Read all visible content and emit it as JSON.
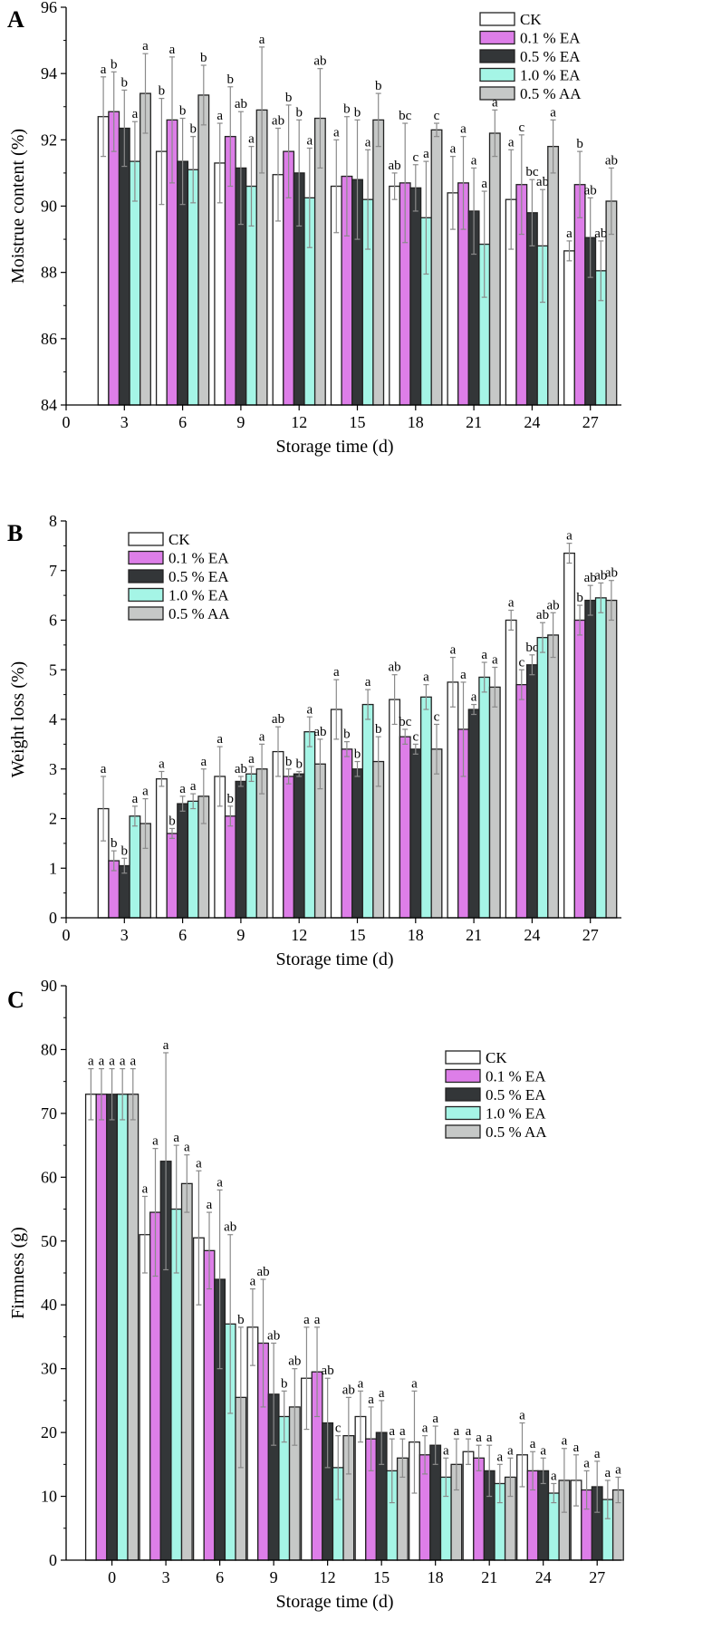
{
  "colors": {
    "CK": "#ffffff",
    "0.1 % EA": "#dd7ee8",
    "0.5 % EA": "#333638",
    "1.0 % EA": "#a5f5e6",
    "0.5 % AA": "#c6c8c7",
    "error_bar": "#8a8a8a"
  },
  "chart_data": [
    {
      "panel_label": "A",
      "type": "bar",
      "xlabel": "Storage time (d)",
      "ylabel": "Moistrue content (%)",
      "ylim": [
        84,
        96
      ],
      "yticks": [
        84,
        86,
        88,
        90,
        92,
        94,
        96
      ],
      "xticks": [
        0,
        3,
        6,
        9,
        12,
        15,
        18,
        21,
        24,
        27
      ],
      "categories": [
        3,
        6,
        9,
        12,
        15,
        18,
        21,
        24,
        27
      ],
      "legend_position": "top-right",
      "grid": false,
      "series": [
        {
          "name": "CK",
          "values": [
            92.7,
            91.65,
            91.3,
            90.95,
            90.6,
            90.6,
            90.4,
            90.2,
            88.65
          ],
          "err": [
            1.2,
            1.6,
            1.2,
            1.4,
            1.4,
            0.4,
            1.1,
            1.5,
            0.3
          ],
          "letters": [
            "a",
            "b",
            "a",
            "ab",
            "a",
            "ab",
            "a",
            "a",
            "a"
          ]
        },
        {
          "name": "0.1 % EA",
          "values": [
            92.85,
            92.6,
            92.1,
            91.65,
            90.9,
            90.7,
            90.7,
            90.65,
            90.65
          ],
          "err": [
            1.2,
            1.9,
            1.5,
            1.4,
            1.8,
            1.8,
            1.4,
            1.5,
            1.0
          ],
          "letters": [
            "b",
            "a",
            "b",
            "b",
            "b",
            "bc",
            "a",
            "c",
            "b"
          ]
        },
        {
          "name": "0.5 % EA",
          "values": [
            92.35,
            91.35,
            91.15,
            91.0,
            90.8,
            90.55,
            89.85,
            89.8,
            89.05
          ],
          "err": [
            1.15,
            1.3,
            1.7,
            1.6,
            1.8,
            0.7,
            1.3,
            1.0,
            1.2
          ],
          "letters": [
            "b",
            "b",
            "ab",
            "b",
            "b",
            "c",
            "a",
            "bc",
            "ab"
          ]
        },
        {
          "name": "1.0 % EA",
          "values": [
            91.35,
            91.1,
            90.6,
            90.25,
            90.2,
            89.65,
            88.85,
            88.8,
            88.05
          ],
          "err": [
            1.2,
            1.0,
            1.2,
            1.5,
            1.5,
            1.7,
            1.6,
            1.7,
            0.9
          ],
          "letters": [
            "a",
            "b",
            "a",
            "a",
            "a",
            "a",
            "a",
            "ab",
            "ab"
          ]
        },
        {
          "name": "0.5 % AA",
          "values": [
            93.4,
            93.35,
            92.9,
            92.65,
            92.6,
            92.3,
            92.2,
            91.8,
            90.15
          ],
          "err": [
            1.2,
            0.9,
            1.9,
            1.5,
            0.8,
            0.2,
            0.7,
            0.8,
            1.0
          ],
          "letters": [
            "a",
            "b",
            "a",
            "ab",
            "b",
            "c",
            "a",
            "a",
            "ab"
          ]
        }
      ]
    },
    {
      "panel_label": "B",
      "type": "bar",
      "xlabel": "Storage time (d)",
      "ylabel": "Weight loss (%)",
      "ylim": [
        0,
        8
      ],
      "yticks": [
        0,
        1,
        2,
        3,
        4,
        5,
        6,
        7,
        8
      ],
      "xticks": [
        0,
        3,
        6,
        9,
        12,
        15,
        18,
        21,
        24,
        27
      ],
      "categories": [
        3,
        6,
        9,
        12,
        15,
        18,
        21,
        24,
        27
      ],
      "legend_position": "top-left",
      "grid": false,
      "series": [
        {
          "name": "CK",
          "values": [
            2.2,
            2.8,
            2.85,
            3.35,
            4.2,
            4.4,
            4.75,
            6.0,
            7.35
          ],
          "err": [
            0.65,
            0.15,
            0.6,
            0.5,
            0.6,
            0.5,
            0.5,
            0.2,
            0.2
          ],
          "letters": [
            "a",
            "a",
            "a",
            "ab",
            "a",
            "ab",
            "a",
            "a",
            "a"
          ]
        },
        {
          "name": "0.1 % EA",
          "values": [
            1.15,
            1.7,
            2.05,
            2.85,
            3.4,
            3.65,
            3.8,
            4.7,
            6.0
          ],
          "err": [
            0.2,
            0.1,
            0.2,
            0.15,
            0.15,
            0.15,
            0.95,
            0.3,
            0.3
          ],
          "letters": [
            "b",
            "b",
            "b",
            "b",
            "b",
            "bc",
            "a",
            "c",
            "b"
          ]
        },
        {
          "name": "0.5 % EA",
          "values": [
            1.05,
            2.3,
            2.75,
            2.9,
            3.0,
            3.4,
            4.2,
            5.1,
            6.4
          ],
          "err": [
            0.15,
            0.15,
            0.1,
            0.05,
            0.15,
            0.1,
            0.1,
            0.2,
            0.3
          ],
          "letters": [
            "b",
            "a",
            "ab",
            "b",
            "b",
            "c",
            "a",
            "bc",
            "ab"
          ]
        },
        {
          "name": "1.0 % EA",
          "values": [
            2.05,
            2.35,
            2.9,
            3.75,
            4.3,
            4.45,
            4.85,
            5.65,
            6.45
          ],
          "err": [
            0.2,
            0.15,
            0.15,
            0.3,
            0.3,
            0.25,
            0.3,
            0.3,
            0.3
          ],
          "letters": [
            "a",
            "a",
            "a",
            "a",
            "a",
            "a",
            "a",
            "ab",
            "ab"
          ]
        },
        {
          "name": "0.5 % AA",
          "values": [
            1.9,
            2.45,
            3.0,
            3.1,
            3.15,
            3.4,
            4.65,
            5.7,
            6.4
          ],
          "err": [
            0.5,
            0.55,
            0.5,
            0.5,
            0.5,
            0.5,
            0.4,
            0.45,
            0.4
          ],
          "letters": [
            "a",
            "a",
            "a",
            "ab",
            "b",
            "c",
            "a",
            "ab",
            "ab"
          ]
        }
      ]
    },
    {
      "panel_label": "C",
      "type": "bar",
      "xlabel": "Storage time (d)",
      "ylabel": "Firmness (g)",
      "ylim": [
        0,
        90
      ],
      "yticks": [
        0,
        10,
        20,
        30,
        40,
        50,
        60,
        70,
        80,
        90
      ],
      "xticks": [
        0,
        3,
        6,
        9,
        12,
        15,
        18,
        21,
        24,
        27
      ],
      "categories": [
        0,
        3,
        6,
        9,
        12,
        15,
        18,
        21,
        24,
        27
      ],
      "legend_position": "top-right",
      "grid": false,
      "series": [
        {
          "name": "CK",
          "values": [
            73,
            51,
            50.5,
            36.5,
            28.5,
            22.5,
            18.5,
            17,
            16.5,
            12.5
          ],
          "err": [
            4,
            6,
            10.5,
            6,
            8,
            4,
            8,
            2,
            5,
            4
          ],
          "letters": [
            "a",
            "a",
            "a",
            "a",
            "a",
            "a",
            "a",
            "a",
            "a",
            "a"
          ]
        },
        {
          "name": "0.1 % EA",
          "values": [
            73,
            54.5,
            48.5,
            34,
            29.5,
            19,
            16.5,
            16,
            14,
            11
          ],
          "err": [
            4,
            10,
            6,
            10,
            7,
            5,
            3,
            2,
            3,
            3
          ],
          "letters": [
            "a",
            "a",
            "a",
            "ab",
            "a",
            "a",
            "a",
            "a",
            "a",
            "a"
          ]
        },
        {
          "name": "0.5 % EA",
          "values": [
            73,
            62.5,
            44,
            26,
            21.5,
            20,
            18,
            14,
            14,
            11.5
          ],
          "err": [
            4,
            17,
            14,
            8,
            7,
            5,
            3,
            4,
            2,
            4
          ],
          "letters": [
            "a",
            "a",
            "a",
            "ab",
            "ab",
            "a",
            "a",
            "a",
            "a",
            "a"
          ]
        },
        {
          "name": "1.0 % EA",
          "values": [
            73,
            55,
            37,
            22.5,
            14.5,
            14,
            13,
            12,
            10.5,
            9.5
          ],
          "err": [
            4,
            10,
            14,
            4,
            5,
            5,
            3,
            3,
            1.5,
            3
          ],
          "letters": [
            "a",
            "a",
            "ab",
            "b",
            "c",
            "a",
            "a",
            "a",
            "a",
            "a"
          ]
        },
        {
          "name": "0.5 % AA",
          "values": [
            73,
            59,
            25.5,
            24,
            19.5,
            16,
            15,
            13,
            12.5,
            11
          ],
          "err": [
            4,
            4.5,
            11,
            6,
            6,
            3,
            4,
            3,
            5,
            2
          ],
          "letters": [
            "a",
            "a",
            "b",
            "ab",
            "ab",
            "a",
            "a",
            "a",
            "a",
            "a"
          ]
        }
      ]
    }
  ]
}
